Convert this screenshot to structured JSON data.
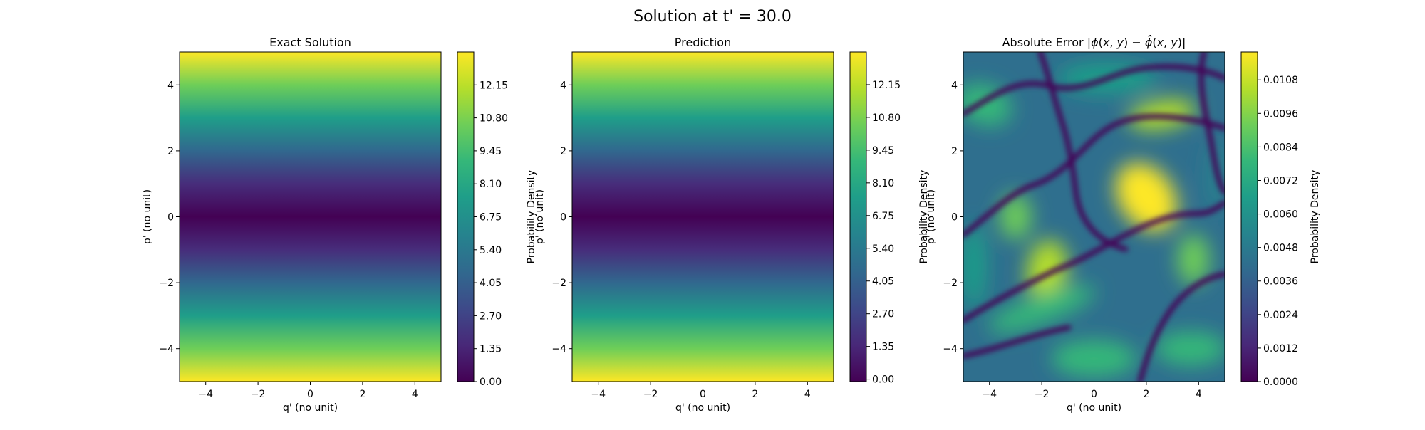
{
  "figure": {
    "title": "Solution at t' = 30.0"
  },
  "colors": {
    "colormap": "viridis",
    "viridis_stops": [
      "#440154",
      "#482878",
      "#3e4989",
      "#31688e",
      "#26828e",
      "#1f9e89",
      "#35b779",
      "#6ece58",
      "#b5de2b",
      "#fde725"
    ]
  },
  "chart_data": [
    {
      "type": "heatmap",
      "title": "Exact Solution",
      "xlabel": "q' (no unit)",
      "ylabel": "p' (no unit)",
      "xlim": [
        -5,
        5
      ],
      "ylim": [
        -5,
        5
      ],
      "xticks": [
        -4,
        -2,
        0,
        2,
        4
      ],
      "yticks": [
        -4,
        -2,
        0,
        2,
        4
      ],
      "xtick_labels": [
        "−4",
        "−2",
        "0",
        "2",
        "4"
      ],
      "ytick_labels": [
        "−4",
        "−2",
        "0",
        "2",
        "4"
      ],
      "colorbar": {
        "label": "Probability Density",
        "range": [
          0.0,
          13.5
        ],
        "ticks": [
          0.0,
          1.35,
          2.7,
          4.05,
          5.4,
          6.75,
          8.1,
          9.45,
          10.8,
          12.15
        ],
        "tick_labels": [
          "0.00",
          "1.35",
          "2.70",
          "4.05",
          "5.40",
          "6.75",
          "8.10",
          "9.45",
          "10.80",
          "12.15"
        ]
      },
      "field": "density varies only with p': minimum 0.00 at p' = 0, rising symmetrically to about 13.5 at p' = ±5; approximately 0.54·p'²",
      "p_values": [
        -5,
        -4,
        -3,
        -2,
        -1,
        0,
        1,
        2,
        3,
        4,
        5
      ],
      "density_values": [
        13.5,
        8.6,
        4.9,
        2.2,
        0.5,
        0.0,
        0.5,
        2.2,
        4.9,
        8.6,
        13.5
      ]
    },
    {
      "type": "heatmap",
      "title": "Prediction",
      "xlabel": "q' (no unit)",
      "ylabel": "p' (no unit)",
      "xlim": [
        -5,
        5
      ],
      "ylim": [
        -5,
        5
      ],
      "xticks": [
        -4,
        -2,
        0,
        2,
        4
      ],
      "yticks": [
        -4,
        -2,
        0,
        2,
        4
      ],
      "xtick_labels": [
        "−4",
        "−2",
        "0",
        "2",
        "4"
      ],
      "ytick_labels": [
        "−4",
        "−2",
        "0",
        "2",
        "4"
      ],
      "colorbar": {
        "label": "Probability Density",
        "range": [
          -0.1,
          13.5
        ],
        "ticks": [
          0.0,
          1.35,
          2.7,
          4.05,
          5.4,
          6.75,
          8.1,
          9.45,
          10.8,
          12.15
        ],
        "tick_labels": [
          "0.00",
          "1.35",
          "2.70",
          "4.05",
          "5.40",
          "6.75",
          "8.10",
          "9.45",
          "10.80",
          "12.15"
        ]
      },
      "field": "nearly identical to the exact solution: minimum near 0 at p' = 0, about 13.5 at p' = ±5",
      "p_values": [
        -5,
        -4,
        -3,
        -2,
        -1,
        0,
        1,
        2,
        3,
        4,
        5
      ],
      "density_values": [
        13.5,
        8.6,
        4.9,
        2.2,
        0.5,
        0.0,
        0.5,
        2.2,
        4.9,
        8.6,
        13.5
      ]
    },
    {
      "type": "heatmap",
      "title_parts": [
        "Absolute Error |",
        "ϕ",
        "(",
        "x",
        ", ",
        "y",
        ") − ",
        "ϕ̂",
        "(",
        "x",
        ", ",
        "y",
        ")|"
      ],
      "xlabel": "q' (no unit)",
      "ylabel": "p' (no unit)",
      "xlim": [
        -5,
        5
      ],
      "ylim": [
        -5,
        5
      ],
      "xticks": [
        -4,
        -2,
        0,
        2,
        4
      ],
      "yticks": [
        -4,
        -2,
        0,
        2,
        4
      ],
      "xtick_labels": [
        "−4",
        "−2",
        "0",
        "2",
        "4"
      ],
      "ytick_labels": [
        "−4",
        "−2",
        "0",
        "2",
        "4"
      ],
      "colorbar": {
        "label": "Probability Density",
        "range": [
          0.0,
          0.0118
        ],
        "ticks": [
          0.0,
          0.0012,
          0.0024,
          0.0036,
          0.0048,
          0.006,
          0.0072,
          0.0084,
          0.0096,
          0.0108
        ],
        "tick_labels": [
          "0.0000",
          "0.0012",
          "0.0024",
          "0.0036",
          "0.0048",
          "0.0060",
          "0.0072",
          "0.0084",
          "0.0096",
          "0.0108"
        ]
      },
      "field": "oscillatory error field with dark zero-contours; peak about 0.0115 near (q', p') = (2, 0.6); other bright lobes near (2.5, 3.1), (-1.8, -1.6), (-3, 0), (3.8, -1.3), (3.6, -4)",
      "hotspots": [
        {
          "q": 2.0,
          "p": 0.6,
          "value": 0.0115
        },
        {
          "q": 2.6,
          "p": 3.1,
          "value": 0.0105
        },
        {
          "q": -1.8,
          "p": -1.6,
          "value": 0.0095
        },
        {
          "q": -3.0,
          "p": 0.0,
          "value": 0.008
        },
        {
          "q": 3.8,
          "p": -1.3,
          "value": 0.0085
        },
        {
          "q": 3.7,
          "p": -4.0,
          "value": 0.007
        }
      ]
    }
  ]
}
